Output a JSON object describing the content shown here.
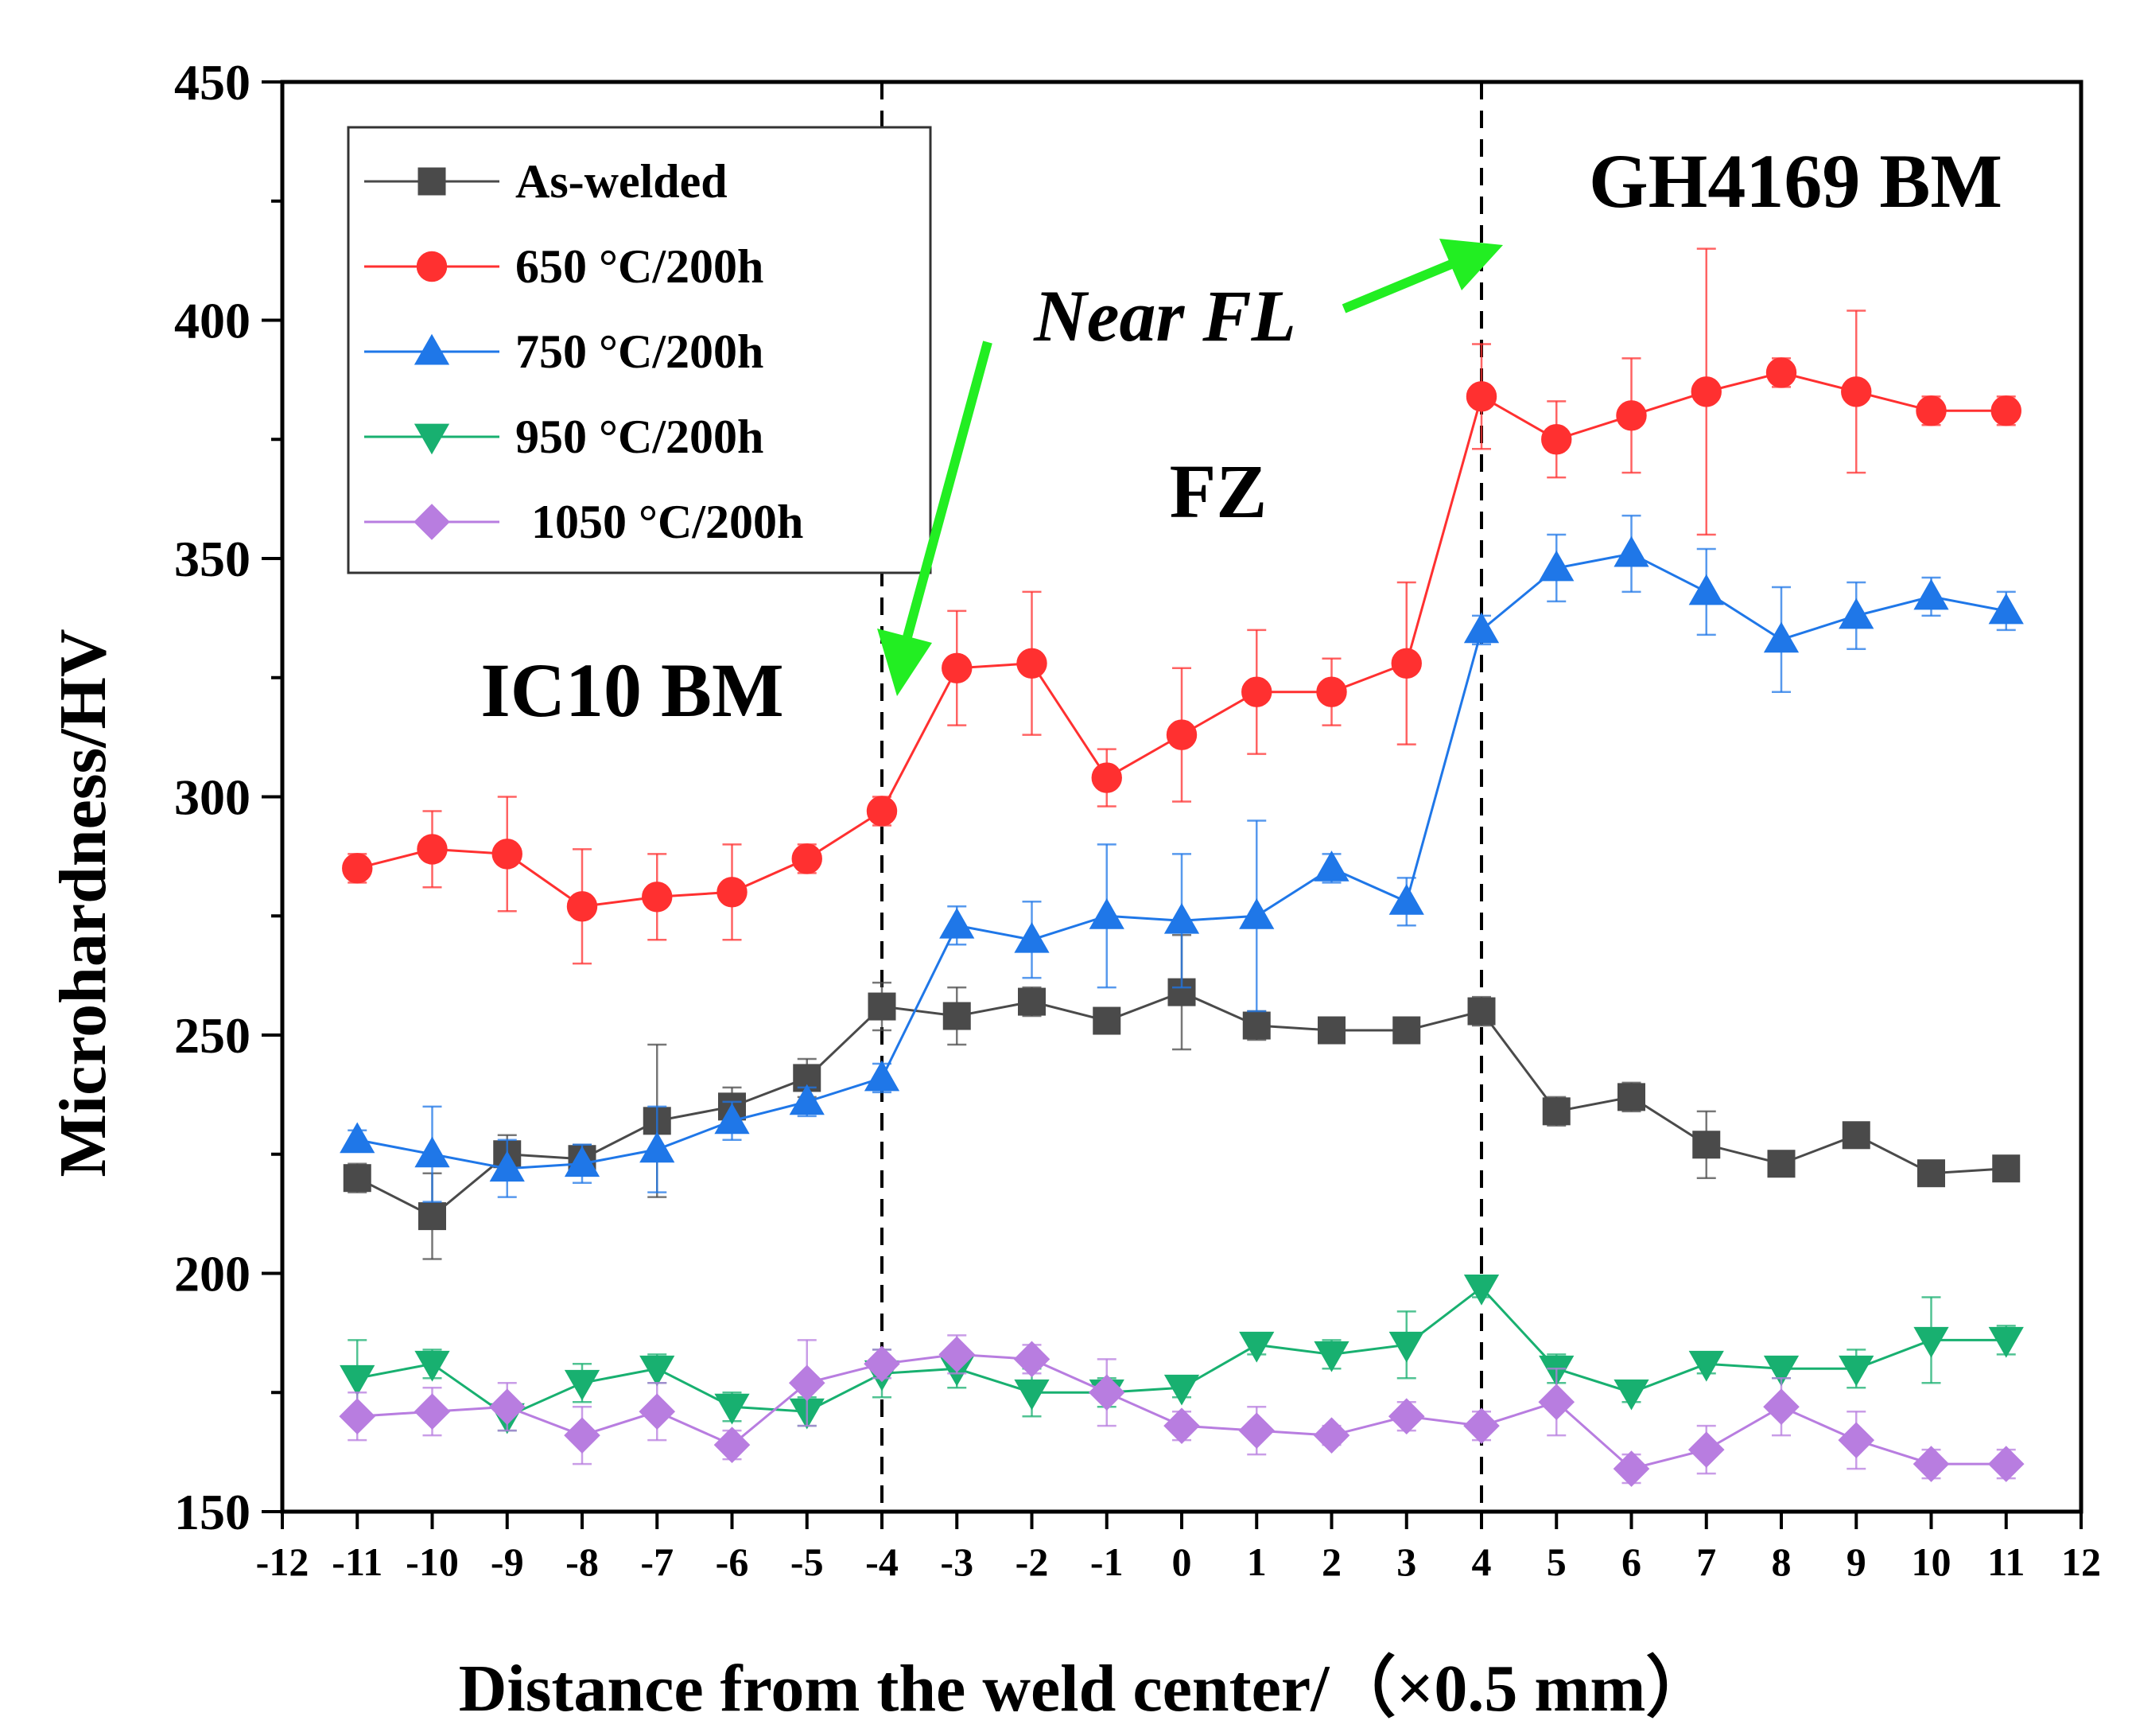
{
  "chart_data": {
    "type": "line",
    "xlabel": "Distance from the weld center/（×0.5 mm）",
    "ylabel": "Microhardness/HV",
    "xlim": [
      -12,
      12
    ],
    "ylim": [
      150,
      450
    ],
    "x_ticks": [
      "-12",
      "-11",
      "-10",
      "-9",
      "-8",
      "-7",
      "-6",
      "-5",
      "-4",
      "-3",
      "-2",
      "-1",
      "0",
      "1",
      "2",
      "3",
      "4",
      "5",
      "6",
      "7",
      "8",
      "9",
      "10",
      "11",
      "12"
    ],
    "y_ticks": [
      "150",
      "200",
      "250",
      "300",
      "350",
      "400",
      "450"
    ],
    "x": [
      -11,
      -10,
      -9,
      -8,
      -7,
      -6,
      -5,
      -4,
      -3,
      -2,
      -1,
      0,
      1,
      2,
      3,
      4,
      5,
      6,
      7,
      8,
      9,
      10,
      11
    ],
    "series": [
      {
        "name": "As-welded",
        "color": "#4a4a4a",
        "marker": "square",
        "values": [
          220,
          212,
          225,
          224,
          232,
          235,
          241,
          256,
          254,
          257,
          253,
          259,
          252,
          251,
          251,
          255,
          234,
          237,
          227,
          223,
          229,
          221,
          222
        ],
        "errors": [
          3,
          9,
          4,
          3,
          16,
          4,
          4,
          5,
          6,
          3,
          2,
          12,
          3,
          2,
          2,
          3,
          3,
          3,
          7,
          2,
          2,
          2,
          2
        ]
      },
      {
        "name": "650 °C/200h",
        "color": "#ff3030",
        "marker": "circle",
        "values": [
          285,
          289,
          288,
          277,
          279,
          280,
          287,
          297,
          327,
          328,
          304,
          313,
          322,
          322,
          328,
          384,
          375,
          380,
          385,
          389,
          385,
          381,
          381
        ],
        "errors": [
          3,
          8,
          12,
          12,
          9,
          10,
          3,
          3,
          12,
          15,
          6,
          14,
          13,
          7,
          17,
          11,
          8,
          12,
          30,
          3,
          17,
          3,
          3
        ]
      },
      {
        "name": "750 °C/200h",
        "color": "#1f77e8",
        "marker": "triangle-up",
        "values": [
          228,
          225,
          222,
          223,
          226,
          232,
          236,
          241,
          273,
          270,
          275,
          274,
          275,
          285,
          278,
          335,
          348,
          351,
          343,
          333,
          338,
          342,
          339
        ],
        "errors": [
          2,
          10,
          6,
          4,
          9,
          4,
          3,
          3,
          4,
          8,
          15,
          14,
          20,
          3,
          5,
          3,
          7,
          8,
          9,
          11,
          7,
          4,
          4
        ]
      },
      {
        "name": "950 °C/200h",
        "color": "#18b070",
        "marker": "triangle-down",
        "values": [
          178,
          181,
          170,
          177,
          180,
          172,
          171,
          179,
          180,
          175,
          175,
          176,
          185,
          183,
          185,
          197,
          180,
          175,
          181,
          180,
          180,
          186,
          186
        ],
        "errors": [
          8,
          3,
          3,
          4,
          3,
          3,
          3,
          5,
          4,
          5,
          3,
          2,
          2,
          3,
          7,
          2,
          3,
          2,
          2,
          2,
          4,
          9,
          3
        ]
      },
      {
        "name": "1050 °C/200h",
        "color": "#b87de0",
        "marker": "diamond",
        "values": [
          170,
          171,
          172,
          166,
          171,
          164,
          177,
          181,
          183,
          182,
          175,
          168,
          167,
          166,
          170,
          168,
          173,
          159,
          163,
          172,
          165,
          160,
          160
        ],
        "errors": [
          5,
          5,
          5,
          6,
          6,
          3,
          9,
          3,
          4,
          3,
          7,
          3,
          5,
          2,
          3,
          3,
          7,
          3,
          5,
          6,
          6,
          3,
          3
        ]
      }
    ],
    "vlines": [
      -4,
      4
    ],
    "annotations": {
      "ic10": "IC10 BM",
      "fz": "FZ",
      "gh4169": "GH4169 BM",
      "near_fl": "Near FL",
      "arrow_color": "#22ee22"
    },
    "legend_position": "top-left"
  }
}
